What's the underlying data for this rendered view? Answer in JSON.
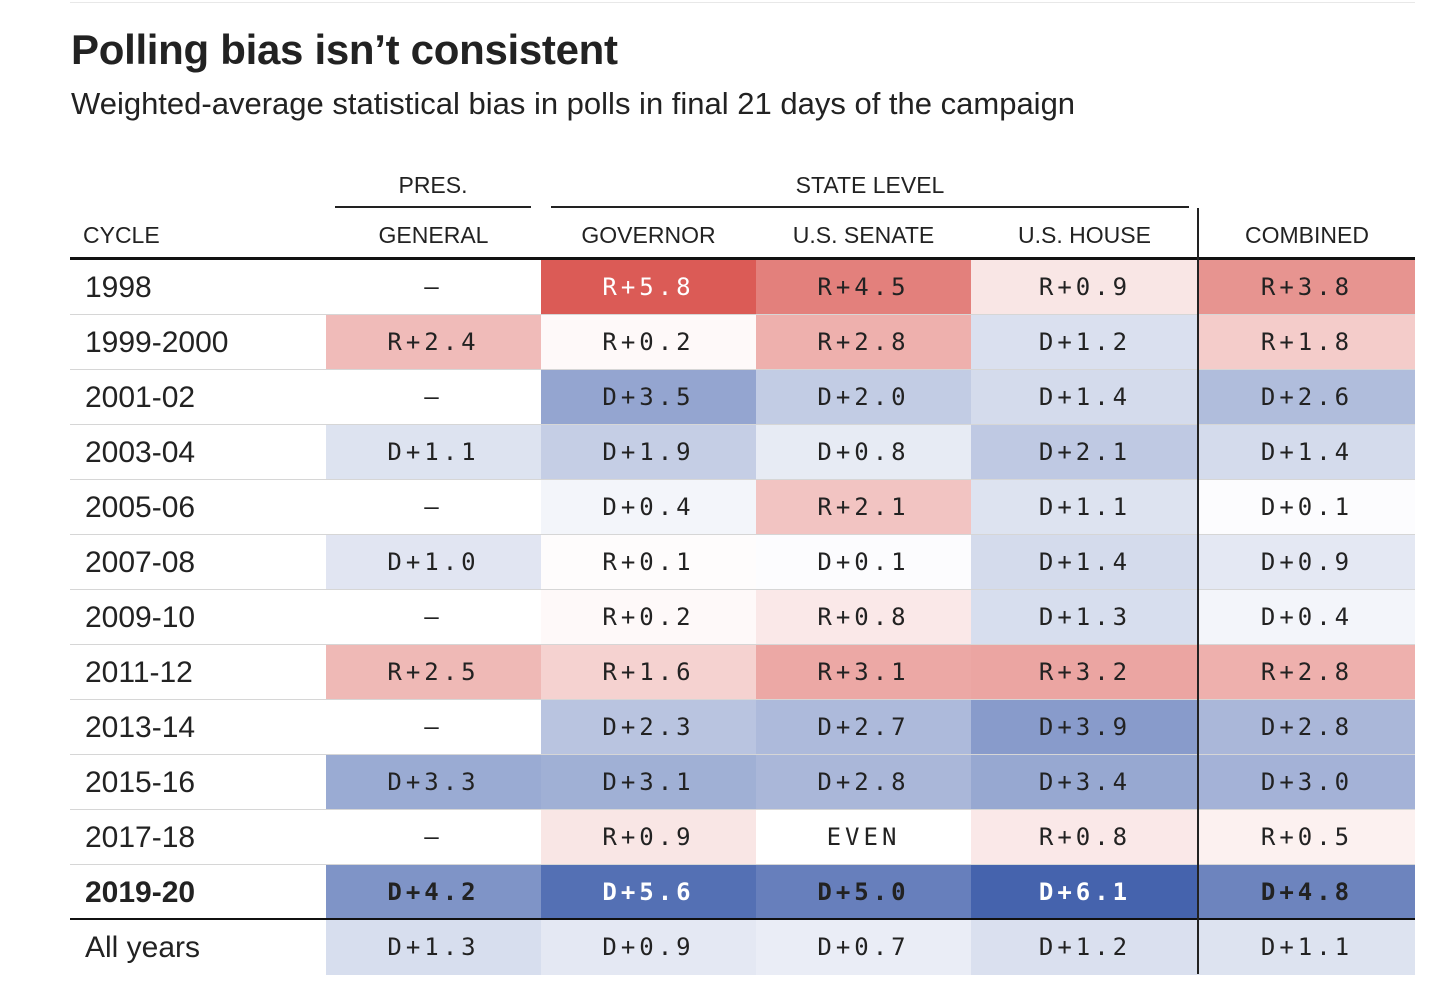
{
  "chart_data": {
    "type": "table",
    "title": "Polling bias isn’t consistent",
    "subtitle": "Weighted-average statistical bias in polls in final 21 days of the campaign",
    "group_headers": {
      "pres": "PRES.",
      "state": "STATE LEVEL"
    },
    "columns": [
      "CYCLE",
      "GENERAL",
      "GOVERNOR",
      "U.S. SENATE",
      "U.S. HOUSE",
      "COMBINED"
    ],
    "highlight_row": "2019-20",
    "colors": {
      "republican_max": "#d9534d",
      "democrat_max": "#4563ad",
      "neutral": "#ffffff",
      "empty_cell": "#ffffff",
      "text_light": "#ffffff",
      "text_dark": "#222222"
    },
    "rows": [
      {
        "cycle": "1998",
        "values": [
          "–",
          "R+5.8",
          "R+4.5",
          "R+0.9",
          "R+3.8"
        ]
      },
      {
        "cycle": "1999-2000",
        "values": [
          "R+2.4",
          "R+0.2",
          "R+2.8",
          "D+1.2",
          "R+1.8"
        ]
      },
      {
        "cycle": "2001-02",
        "values": [
          "–",
          "D+3.5",
          "D+2.0",
          "D+1.4",
          "D+2.6"
        ]
      },
      {
        "cycle": "2003-04",
        "values": [
          "D+1.1",
          "D+1.9",
          "D+0.8",
          "D+2.1",
          "D+1.4"
        ]
      },
      {
        "cycle": "2005-06",
        "values": [
          "–",
          "D+0.4",
          "R+2.1",
          "D+1.1",
          "D+0.1"
        ]
      },
      {
        "cycle": "2007-08",
        "values": [
          "D+1.0",
          "R+0.1",
          "D+0.1",
          "D+1.4",
          "D+0.9"
        ]
      },
      {
        "cycle": "2009-10",
        "values": [
          "–",
          "R+0.2",
          "R+0.8",
          "D+1.3",
          "D+0.4"
        ]
      },
      {
        "cycle": "2011-12",
        "values": [
          "R+2.5",
          "R+1.6",
          "R+3.1",
          "R+3.2",
          "R+2.8"
        ]
      },
      {
        "cycle": "2013-14",
        "values": [
          "–",
          "D+2.3",
          "D+2.7",
          "D+3.9",
          "D+2.8"
        ]
      },
      {
        "cycle": "2015-16",
        "values": [
          "D+3.3",
          "D+3.1",
          "D+2.8",
          "D+3.4",
          "D+3.0"
        ]
      },
      {
        "cycle": "2017-18",
        "values": [
          "–",
          "R+0.9",
          "EVEN",
          "R+0.8",
          "R+0.5"
        ]
      },
      {
        "cycle": "2019-20",
        "values": [
          "D+4.2",
          "D+5.6",
          "D+5.0",
          "D+6.1",
          "D+4.8"
        ]
      },
      {
        "cycle": "All years",
        "values": [
          "D+1.3",
          "D+0.9",
          "D+0.7",
          "D+1.2",
          "D+1.1"
        ]
      }
    ]
  }
}
